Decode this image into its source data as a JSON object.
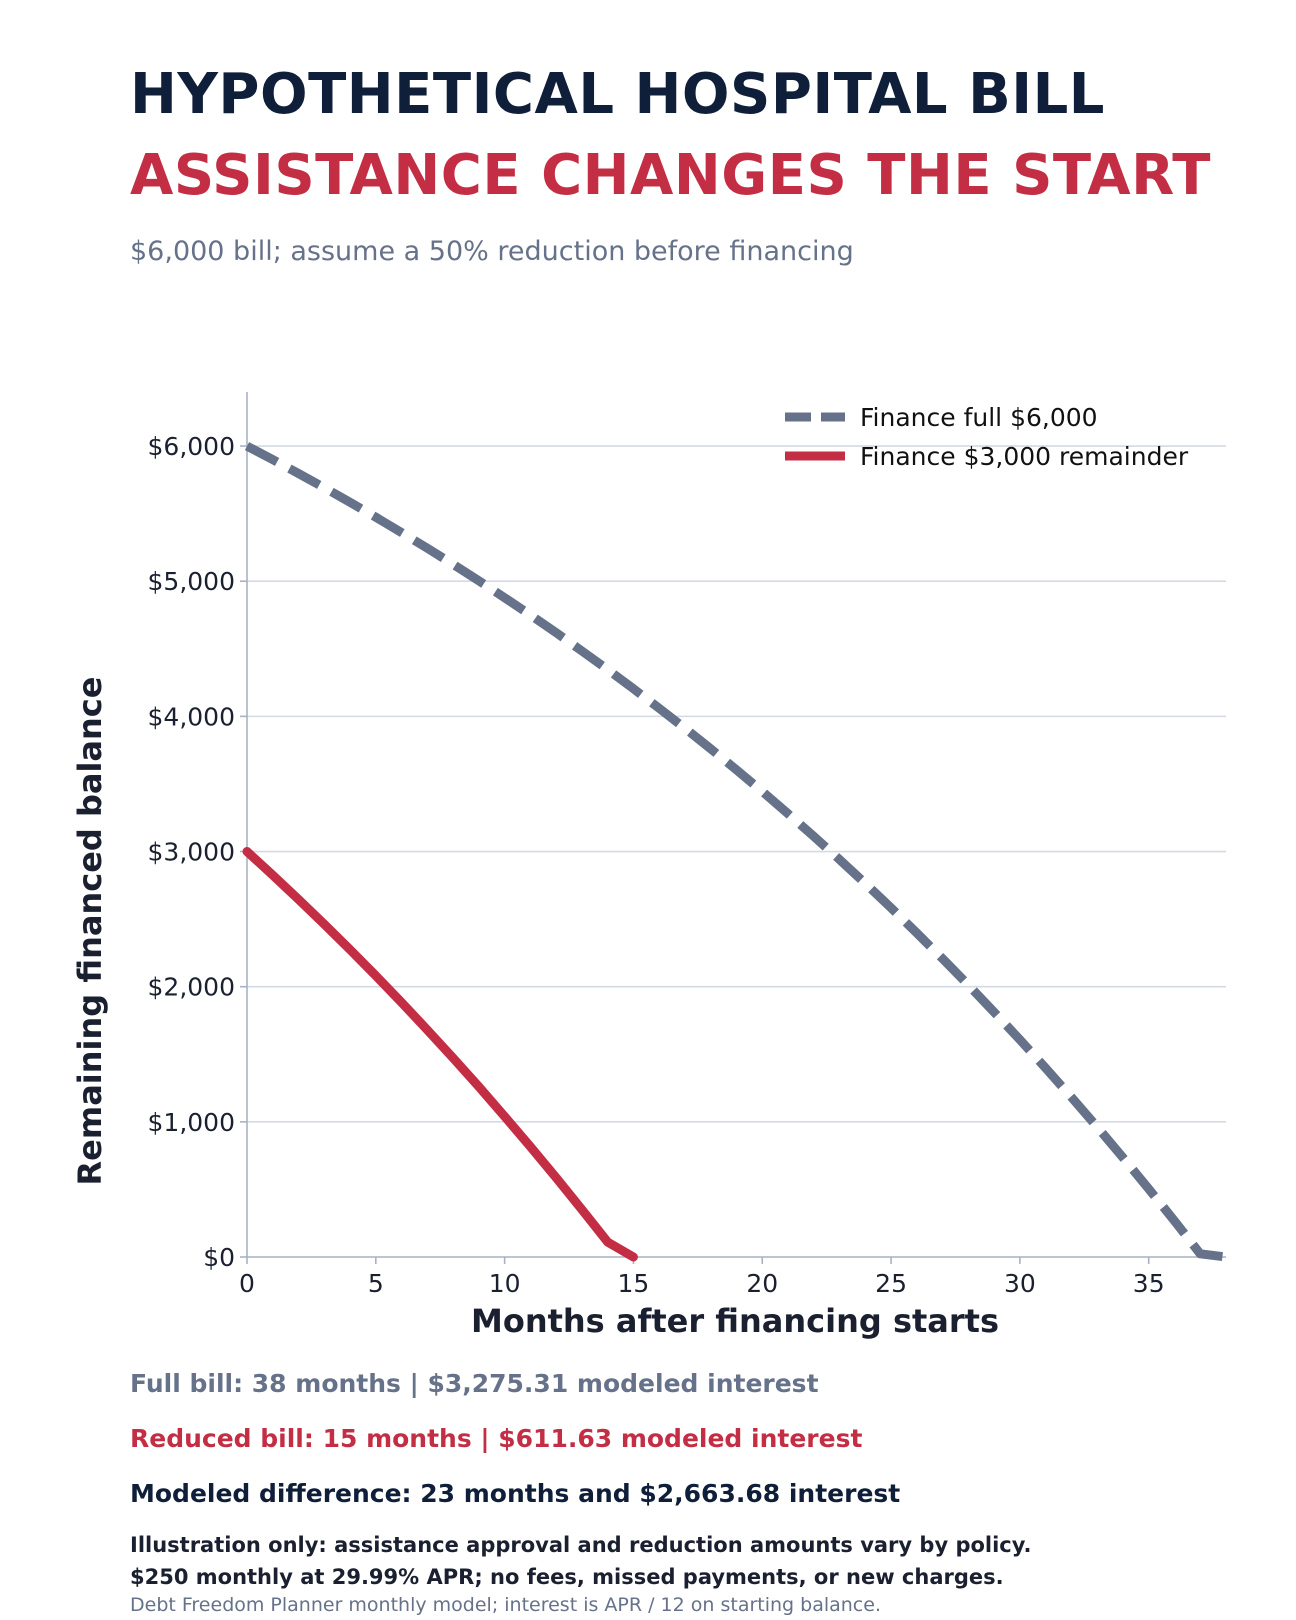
{
  "header": {
    "title_line1": "HYPOTHETICAL HOSPITAL BILL",
    "title_line2": "ASSISTANCE CHANGES THE START",
    "subtitle": "$6,000 bill; assume a 50% reduction before financing"
  },
  "colors": {
    "navy": "#0f1f3a",
    "accent_red": "#c42e45",
    "slate": "#66718a",
    "grid": "#d5d9e3"
  },
  "chart_data": {
    "type": "line",
    "xlabel": "Months after financing starts",
    "ylabel": "Remaining financed balance",
    "xlim": [
      0,
      38
    ],
    "ylim": [
      0,
      6400
    ],
    "xticks": [
      0,
      5,
      10,
      15,
      20,
      25,
      30,
      35
    ],
    "xtick_labels": [
      "0",
      "5",
      "10",
      "15",
      "20",
      "25",
      "30",
      "35"
    ],
    "yticks": [
      0,
      1000,
      2000,
      3000,
      4000,
      5000,
      6000
    ],
    "ytick_labels": [
      "$0",
      "$1,000",
      "$2,000",
      "$3,000",
      "$4,000",
      "$5,000",
      "$6,000"
    ],
    "grid": "horizontal",
    "legend_position": "top-right",
    "series": [
      {
        "name": "Finance full $6,000",
        "style": "dashed",
        "color": "#66718a",
        "x": [
          0,
          1,
          2,
          3,
          4,
          5,
          6,
          7,
          8,
          9,
          10,
          11,
          12,
          13,
          14,
          15,
          16,
          17,
          18,
          19,
          20,
          21,
          22,
          23,
          24,
          25,
          26,
          27,
          28,
          29,
          30,
          31,
          32,
          33,
          34,
          35,
          36,
          37,
          38
        ],
        "y": [
          6000,
          5900,
          5797,
          5692,
          5584,
          5474,
          5360,
          5244,
          5125,
          5003,
          4878,
          4750,
          4619,
          4484,
          4346,
          4205,
          4060,
          3912,
          3760,
          3604,
          3444,
          3280,
          3112,
          2940,
          2764,
          2583,
          2397,
          2207,
          2012,
          1812,
          1608,
          1398,
          1182,
          962,
          736,
          504,
          267,
          24,
          0
        ]
      },
      {
        "name": "Finance $3,000 remainder",
        "style": "solid",
        "color": "#c42e45",
        "x": [
          0,
          1,
          2,
          3,
          4,
          5,
          6,
          7,
          8,
          9,
          10,
          11,
          12,
          13,
          14,
          15
        ],
        "y": [
          3000,
          2825,
          2646,
          2462,
          2274,
          2081,
          1883,
          1680,
          1472,
          1259,
          1040,
          816,
          586,
          351,
          110,
          0
        ]
      }
    ]
  },
  "notes": {
    "full_bill": "Full bill: 38 months  |  $3,275.31 modeled interest",
    "reduced_bill": "Reduced bill: 15 months  |  $611.63 modeled interest",
    "difference": "Modeled difference: 23 months and $2,663.68 interest",
    "disclaimer_1": "Illustration only: assistance approval and reduction amounts vary by policy.",
    "disclaimer_2": "$250 monthly at 29.99% APR; no fees, missed payments, or new charges.",
    "source": "Debt Freedom Planner monthly model; interest is APR / 12 on starting balance."
  }
}
